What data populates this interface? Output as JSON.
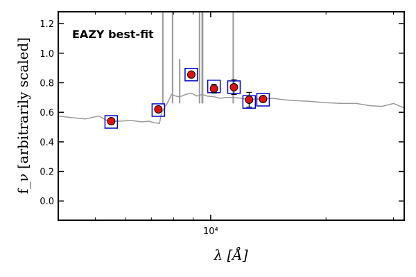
{
  "chart_data": {
    "type": "scatter",
    "title": "",
    "xlabel": "λ [Å]",
    "ylabel": "f_ν [arbitrarily scaled]",
    "annotation": "EAZY best-fit",
    "xscale": "log",
    "xlim": [
      4000,
      32000
    ],
    "ylim": [
      -0.13,
      1.28
    ],
    "grid": false,
    "x_tick_labels": [
      {
        "value": 10000,
        "label": "10⁴"
      }
    ],
    "y_tick_labels": [
      {
        "value": 0.0,
        "label": "0.0"
      },
      {
        "value": 0.2,
        "label": "0.2"
      },
      {
        "value": 0.4,
        "label": "0.4"
      },
      {
        "value": 0.6,
        "label": "0.6"
      },
      {
        "value": 0.8,
        "label": "0.8"
      },
      {
        "value": 1.0,
        "label": "1.0"
      },
      {
        "value": 1.2,
        "label": "1.2"
      }
    ],
    "observed_points": [
      {
        "x": 5500,
        "y": 0.54,
        "err": 0.01
      },
      {
        "x": 7300,
        "y": 0.62,
        "err": 0.01
      },
      {
        "x": 8900,
        "y": 0.855,
        "err": 0.01
      },
      {
        "x": 10200,
        "y": 0.76,
        "err": 0.03
      },
      {
        "x": 11500,
        "y": 0.77,
        "err": 0.05
      },
      {
        "x": 12600,
        "y": 0.685,
        "err": 0.05
      },
      {
        "x": 13700,
        "y": 0.69,
        "err": 0.02
      }
    ],
    "model_photometry": [
      {
        "x": 5500,
        "y": 0.535
      },
      {
        "x": 7300,
        "y": 0.615
      },
      {
        "x": 8900,
        "y": 0.855
      },
      {
        "x": 10200,
        "y": 0.775
      },
      {
        "x": 11500,
        "y": 0.77
      },
      {
        "x": 12600,
        "y": 0.67
      },
      {
        "x": 13700,
        "y": 0.685
      }
    ],
    "model_spectrum": {
      "x": [
        4000,
        4300,
        4700,
        5100,
        5400,
        5800,
        6200,
        6600,
        6900,
        7100,
        7350,
        7450,
        7500,
        7650,
        7700,
        7900,
        8100,
        8300,
        8600,
        8900,
        9200,
        9500,
        9800,
        10200,
        10600,
        11000,
        11500,
        12000,
        12600,
        13000,
        13700,
        14500,
        15500,
        16500,
        18000,
        20000,
        22000,
        24000,
        26000,
        28000,
        30000,
        32000
      ],
      "y": [
        0.575,
        0.565,
        0.555,
        0.575,
        0.54,
        0.54,
        0.545,
        0.535,
        0.54,
        0.53,
        0.525,
        0.6,
        0.61,
        0.65,
        0.66,
        0.72,
        0.71,
        0.705,
        0.72,
        0.73,
        0.71,
        0.72,
        0.71,
        0.705,
        0.695,
        0.7,
        0.7,
        0.695,
        0.685,
        0.69,
        0.69,
        0.695,
        0.685,
        0.68,
        0.675,
        0.665,
        0.66,
        0.66,
        0.645,
        0.64,
        0.66,
        0.63
      ]
    },
    "emission_lines": [
      {
        "x": 7500,
        "y": 1.28
      },
      {
        "x": 7950,
        "y": 1.28
      },
      {
        "x": 8300,
        "y": 0.96
      },
      {
        "x": 9350,
        "y": 1.28
      },
      {
        "x": 9500,
        "y": 1.28
      },
      {
        "x": 9530,
        "y": 1.28
      },
      {
        "x": 11450,
        "y": 1.28
      }
    ],
    "colors": {
      "observed_fill": "#dd1111",
      "model_box": "#0000cc",
      "spectrum": "#999999",
      "annotation": "#ff0000"
    }
  }
}
